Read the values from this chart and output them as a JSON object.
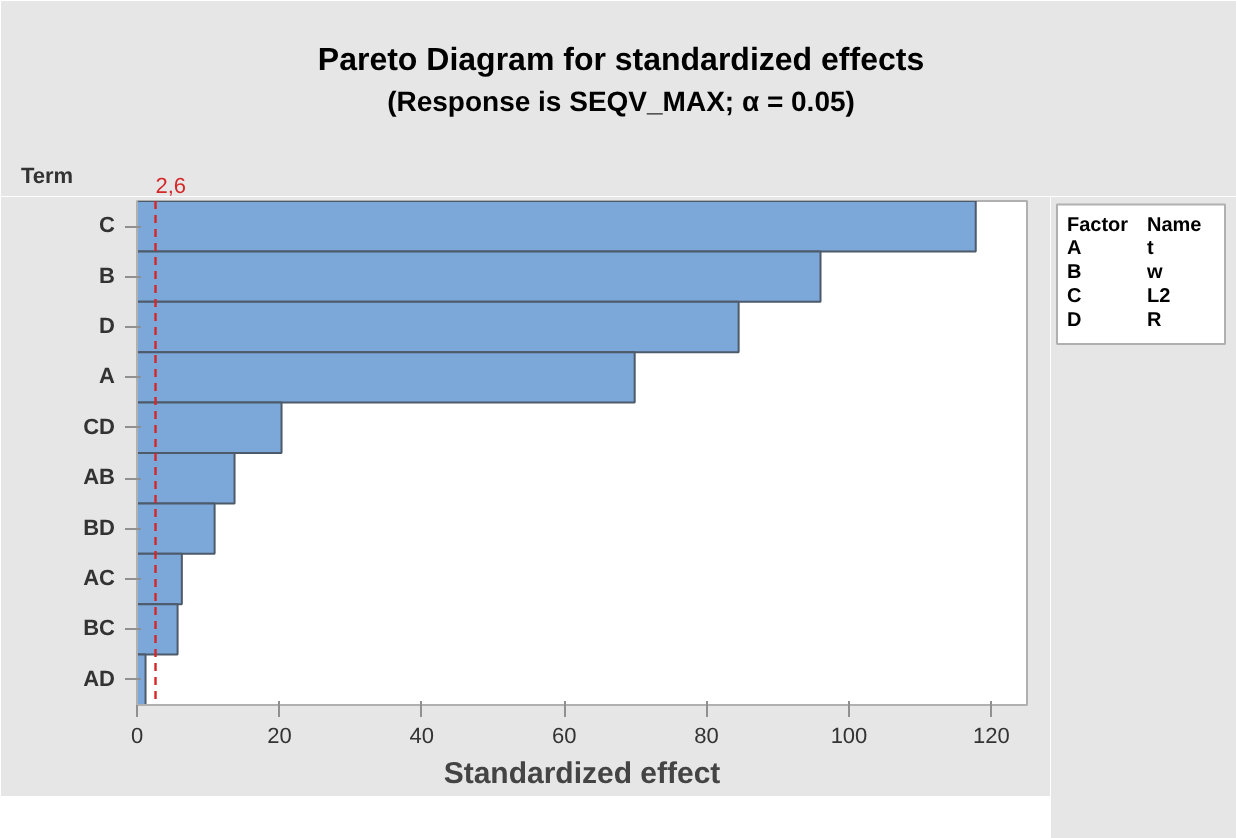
{
  "chart_data": {
    "type": "bar",
    "orientation": "horizontal",
    "title": "Pareto Diagram for standardized effects",
    "subtitle": "(Response is SEQV_MAX; α = 0.05)",
    "xlabel": "Standardized effect",
    "ylabel": "Term",
    "categories": [
      "C",
      "B",
      "D",
      "A",
      "CD",
      "AB",
      "BD",
      "AC",
      "BC",
      "AD"
    ],
    "values": [
      117.8,
      96.0,
      84.5,
      69.9,
      20.3,
      13.7,
      10.9,
      6.3,
      5.7,
      1.2
    ],
    "color": "#7ba7d9",
    "xlim": [
      0,
      125
    ],
    "xticks": [
      0,
      20,
      40,
      60,
      80,
      100,
      120
    ],
    "grid": false,
    "ref_lines": [
      {
        "axis": "x",
        "value": 2.6,
        "label": "2,6",
        "color": "#d62728",
        "line_style": "dashed"
      }
    ],
    "annotations": [
      "Factor\tName",
      "A\tt",
      "B\tw",
      "C\tL2",
      "D\tR"
    ]
  }
}
